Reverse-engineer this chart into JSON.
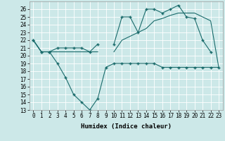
{
  "xlabel": "Humidex (Indice chaleur)",
  "bg_color": "#cce8e8",
  "grid_color": "#ffffff",
  "line_color": "#1a6b6b",
  "x": [
    0,
    1,
    2,
    3,
    4,
    5,
    6,
    7,
    8,
    9,
    10,
    11,
    12,
    13,
    14,
    15,
    16,
    17,
    18,
    19,
    20,
    21,
    22,
    23
  ],
  "line1_y": [
    22,
    20.5,
    20.5,
    21,
    21,
    21,
    21,
    20.5,
    21.5,
    null,
    21.5,
    25,
    25,
    23,
    26,
    26,
    25.5,
    26,
    26.5,
    25,
    24.8,
    22,
    20.5,
    null
  ],
  "line2_y": [
    22,
    20.5,
    20.5,
    20.5,
    20.5,
    20.5,
    20.5,
    20.5,
    20.5,
    null,
    20.5,
    22,
    22.5,
    23,
    23.5,
    24.5,
    24.8,
    25.2,
    25.5,
    25.5,
    25.5,
    25,
    24.5,
    18.5
  ],
  "line3_y": [
    22,
    20.5,
    20.5,
    19,
    17.2,
    15,
    14,
    13,
    14.5,
    18.5,
    19,
    19,
    19,
    19,
    19,
    19,
    18.5,
    18.5,
    18.5,
    18.5,
    18.5,
    18.5,
    18.5,
    18.5
  ],
  "ylim": [
    13,
    27
  ],
  "yticks": [
    13,
    14,
    15,
    16,
    17,
    18,
    19,
    20,
    21,
    22,
    23,
    24,
    25,
    26
  ],
  "xticks": [
    0,
    1,
    2,
    3,
    4,
    5,
    6,
    7,
    8,
    9,
    10,
    11,
    12,
    13,
    14,
    15,
    16,
    17,
    18,
    19,
    20,
    21,
    22,
    23
  ],
  "tick_fontsize": 5.5,
  "xlabel_fontsize": 6.5
}
